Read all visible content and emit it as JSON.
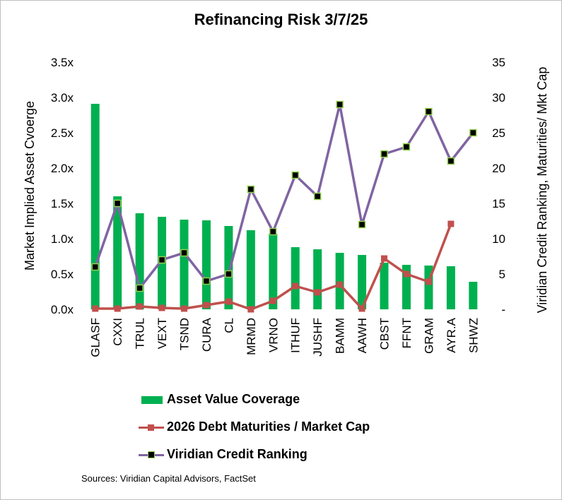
{
  "chart_data": {
    "type": "bar+line",
    "title": "Refinancing Risk 3/7/25",
    "ylabel_left": "Market Implied Asset Cvoerge",
    "ylabel_right": "Viridian Credit Ranking,  Maturities/ Mkt Cap",
    "categories": [
      "GLASF",
      "CXXI",
      "TRUL",
      "VEXT",
      "TSND",
      "CURA",
      "CL",
      "MRMD",
      "VRNO",
      "ITHUF",
      "JUSHF",
      "BAMM",
      "AAWH",
      "CBST",
      "FFNT",
      "GRAM",
      "AYR.A",
      "SHWZ"
    ],
    "left_axis": {
      "min": 0,
      "max": 3.5,
      "step": 0.5,
      "tick_labels": [
        "0.0x",
        "0.5x",
        "1.0x",
        "1.5x",
        "2.0x",
        "2.5x",
        "3.0x",
        "3.5x"
      ]
    },
    "right_axis": {
      "min": 0,
      "max": 35,
      "step": 5,
      "tick_labels": [
        "-",
        "5",
        "10",
        "15",
        "20",
        "25",
        "30",
        "35"
      ]
    },
    "series": [
      {
        "name": "Asset Value Coverage",
        "kind": "bar",
        "axis": "left",
        "color": "#00b050",
        "values": [
          2.91,
          1.6,
          1.36,
          1.31,
          1.27,
          1.26,
          1.18,
          1.12,
          1.07,
          0.88,
          0.85,
          0.8,
          0.77,
          0.66,
          0.63,
          0.62,
          0.61,
          0.39
        ]
      },
      {
        "name": "2026 Debt Maturities / Market Cap",
        "kind": "line",
        "axis": "right",
        "color": "#c0504d",
        "values": [
          0.1,
          0.1,
          0.4,
          0.2,
          0.1,
          0.6,
          1.1,
          0.0,
          1.2,
          3.3,
          2.4,
          3.5,
          0.1,
          7.2,
          5.0,
          3.9,
          12.1,
          null
        ]
      },
      {
        "name": "Viridian Credit Ranking",
        "kind": "line",
        "axis": "right",
        "color": "#8064a2",
        "marker_fill": "#000000",
        "marker_edge": "#92d050",
        "values": [
          6,
          15,
          3,
          7,
          8,
          4,
          5,
          17,
          11,
          19,
          16,
          29,
          12,
          22,
          23,
          28,
          21,
          25
        ]
      }
    ],
    "legend_position": "bottom",
    "grid": false
  },
  "source": "Sources: Viridian Capital Advisors, FactSet"
}
